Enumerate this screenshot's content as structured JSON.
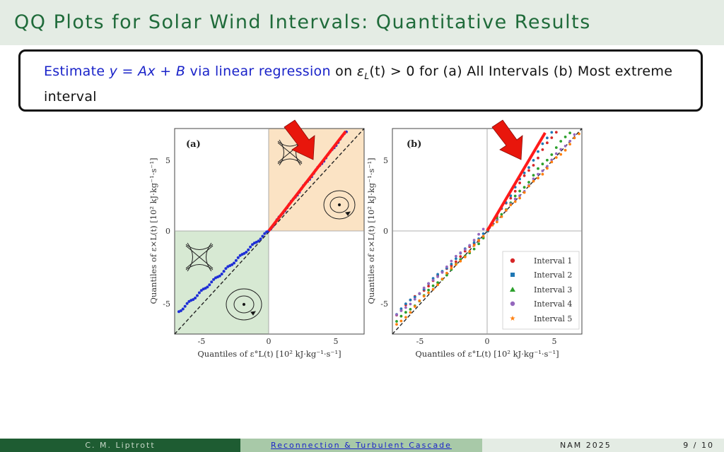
{
  "slide": {
    "title": "QQ Plots for Solar Wind Intervals: Quantitative Results",
    "box": {
      "t1": "Estimate ",
      "t2": "y",
      "t3": " = ",
      "t4": "Ax",
      "t5": " + ",
      "t6": "B",
      "t7": " via linear regression",
      "t8": " on ",
      "t9": "ε",
      "t10": "L",
      "t11": "(t) > 0 for (a) All Intervals (b) Most extreme interval"
    }
  },
  "figure": {
    "panel_a_label": "(a)",
    "panel_b_label": "(b)",
    "ylabel": "Quantiles of ε×L(t) [10² kJ·kg⁻¹·s⁻¹]",
    "xlabel": "Quantiles of ε°L(t) [10² kJ·kg⁻¹·s⁻¹]",
    "xticks": [
      "-5",
      "0",
      "5"
    ],
    "yticks": [
      "5",
      "0",
      "-5"
    ],
    "legend": [
      "Interval 1",
      "Interval 2",
      "Interval 3",
      "Interval 4",
      "Interval 5"
    ],
    "colors": {
      "interval1": "#d62728",
      "interval2": "#1f77b4",
      "interval3": "#2ca02c",
      "interval4": "#9467bd",
      "interval5": "#ff7f0e",
      "panel_a_points": "#1f2fd6",
      "fit_line": "#ff1a1a",
      "quad_orange": "#fbe3c4",
      "quad_green": "#d7e9d3"
    }
  },
  "footer": {
    "author": "C. M. Liptrott",
    "talk": "Reconnection & Turbulent Cascade",
    "venue": "NAM 2025",
    "page": "9 / 10"
  }
}
